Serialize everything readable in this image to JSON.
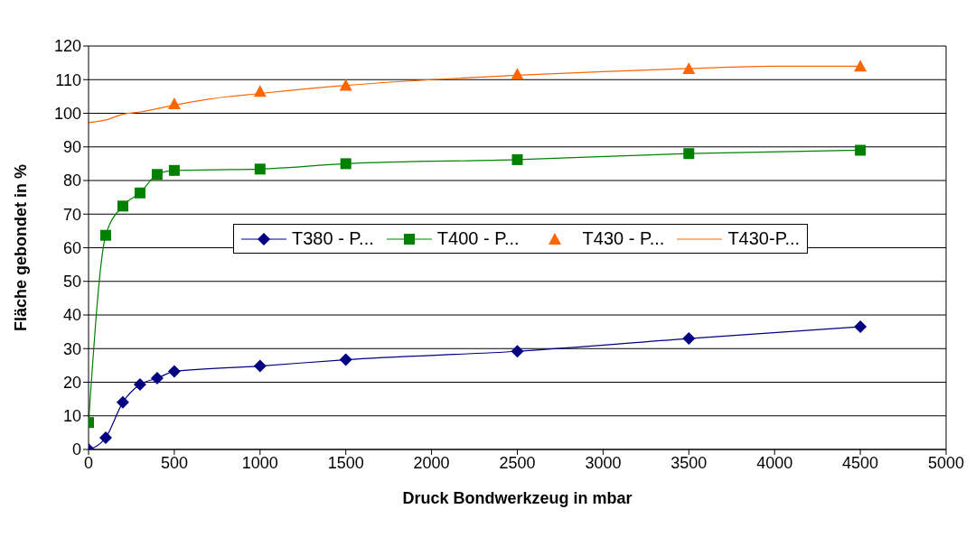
{
  "chart_data": {
    "type": "line",
    "xlabel": "Druck Bondwerkzeug in  mbar",
    "ylabel": "Fläche gebondet in %",
    "xlim": [
      0,
      5000
    ],
    "xticks": [
      0,
      500,
      1000,
      1500,
      2000,
      2500,
      3000,
      3500,
      4000,
      4500,
      5000
    ],
    "ylim": [
      0,
      120
    ],
    "yticks": [
      0,
      10,
      20,
      30,
      40,
      50,
      60,
      70,
      80,
      90,
      100,
      110,
      120
    ],
    "grid": "y",
    "legend": "center",
    "series": [
      {
        "name": "T380 - P...",
        "color": "#000080",
        "marker": "diamond",
        "line_style": "solid",
        "x": [
          0,
          100,
          200,
          300,
          400,
          500,
          1000,
          1500,
          2500,
          3500,
          4500
        ],
        "values": [
          0,
          3.5,
          14,
          19.3,
          21.2,
          23.2,
          24.8,
          26.7,
          29.2,
          33,
          36.5
        ]
      },
      {
        "name": "T400 - P...",
        "color": "#008000",
        "marker": "square",
        "line_style": "solid",
        "x": [
          0,
          100,
          200,
          300,
          400,
          500,
          1000,
          1500,
          2500,
          3500,
          4500
        ],
        "values": [
          8,
          63.7,
          72.4,
          76.3,
          81.8,
          83,
          83.4,
          85,
          86.2,
          88,
          89
        ]
      },
      {
        "name": "T430 - P...",
        "type": "scatter",
        "color": "#ff6600",
        "marker": "triangle",
        "x": [
          500,
          1000,
          1500,
          2500,
          3500,
          4500
        ],
        "values": [
          102.8,
          106.5,
          108.3,
          111.6,
          113.3,
          114
        ]
      },
      {
        "name": "T430-P...",
        "color": "#ff6600",
        "marker": "none",
        "line_style": "solid",
        "x": [
          0,
          100,
          200,
          300,
          500,
          700,
          1000,
          1500,
          2000,
          2500,
          3000,
          3500,
          4000,
          4500
        ],
        "values": [
          97.2,
          98,
          99.7,
          100.4,
          102.4,
          104.2,
          105.9,
          108.3,
          110,
          111.3,
          112.4,
          113.3,
          114,
          114
        ]
      }
    ]
  }
}
